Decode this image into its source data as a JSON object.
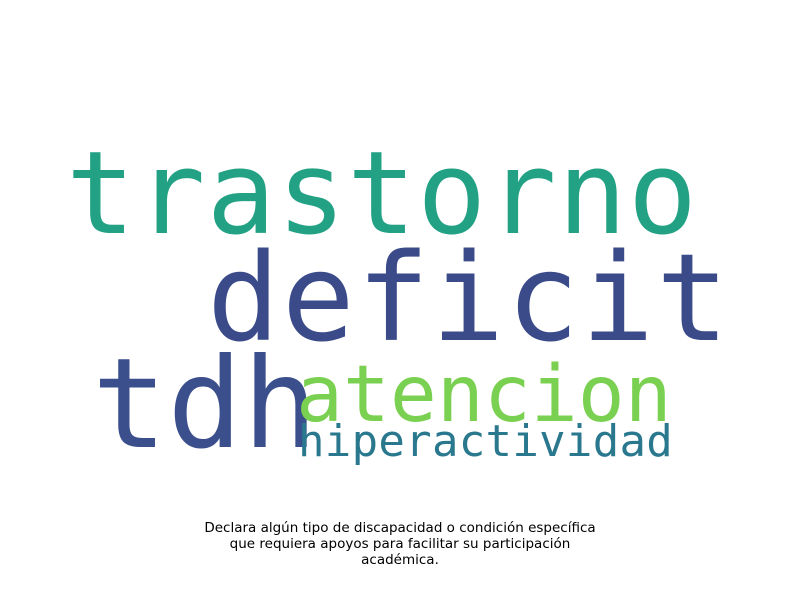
{
  "chart_data": {
    "type": "wordcloud",
    "title": "",
    "words": [
      {
        "text": "trastorno",
        "weight": 0.92,
        "color": "#22a184"
      },
      {
        "text": "deficit",
        "weight": 0.97,
        "color": "#3b4b8a"
      },
      {
        "text": "tdh",
        "weight": 1.0,
        "color": "#3b4f8c"
      },
      {
        "text": "atencion",
        "weight": 0.62,
        "color": "#7ad151"
      },
      {
        "text": "hiperactividad",
        "weight": 0.35,
        "color": "#2a788e"
      }
    ],
    "caption_lines": [
      "Declara algún tipo de discapacidad o condición específica",
      "que requiera apoyos para facilitar su participación",
      "académica."
    ]
  }
}
